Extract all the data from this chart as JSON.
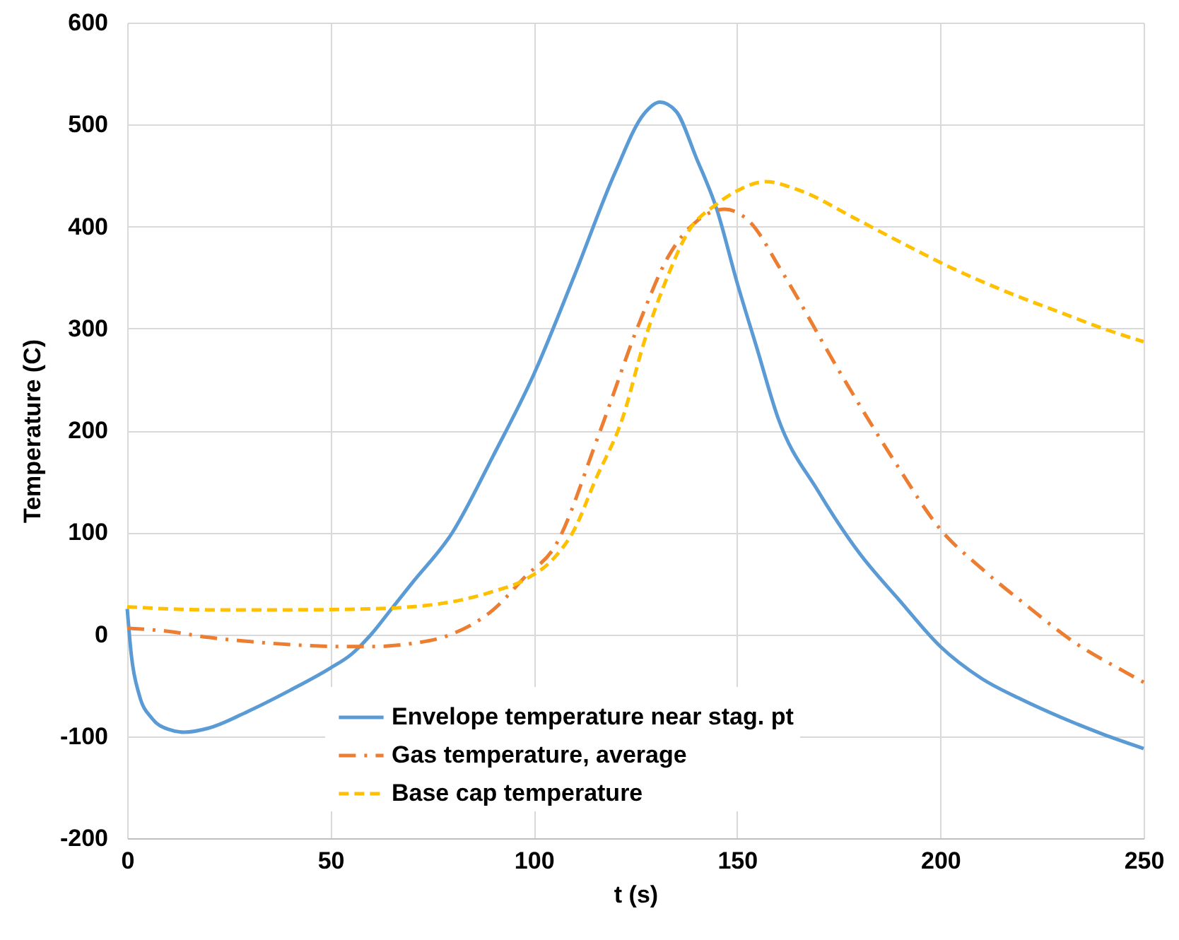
{
  "chart_data": {
    "type": "line",
    "xlabel": "t (s)",
    "ylabel": "Temperature (C)",
    "xlim": [
      0,
      250
    ],
    "xticks": [
      0,
      50,
      100,
      150,
      200,
      250
    ],
    "ylim": [
      -200,
      600
    ],
    "yticks": [
      -200,
      -100,
      0,
      100,
      200,
      300,
      400,
      500,
      600
    ],
    "grid": true,
    "legend": "bottom",
    "series": [
      {
        "name": "Envelope temperature near stag. pt",
        "color": "#5b9bd5",
        "line_style": "solid",
        "x": [
          0,
          1,
          3,
          6,
          10,
          14,
          20,
          30,
          40,
          50,
          55,
          60,
          65,
          70,
          80,
          90,
          100,
          110,
          120,
          127,
          131,
          135,
          140,
          145,
          150,
          155,
          160,
          170,
          180,
          190,
          200,
          210,
          220,
          230,
          240,
          250
        ],
        "values": [
          25,
          -20,
          -60,
          -82,
          -93,
          -96,
          -92,
          -75,
          -55,
          -33,
          -20,
          0,
          25,
          50,
          100,
          175,
          255,
          352,
          453,
          510,
          522,
          513,
          467,
          417,
          345,
          279,
          213,
          140,
          80,
          33,
          -12,
          -43,
          -64,
          -82,
          -98,
          -112
        ]
      },
      {
        "name": "Gas temperature, average",
        "color": "#ed7d31",
        "line_style": "dashdot",
        "x": [
          0,
          10,
          20,
          30,
          40,
          53,
          60,
          70,
          79,
          90,
          98,
          105,
          116,
          126,
          133,
          140,
          147,
          153,
          161,
          175,
          189,
          200,
          210,
          221,
          233,
          245,
          250
        ],
        "values": [
          6,
          3,
          -3,
          -7,
          -10,
          -12,
          -12,
          -9,
          -1,
          24,
          57,
          85,
          196,
          306,
          370,
          405,
          417,
          405,
          356,
          259,
          168,
          103,
          65,
          29,
          -8,
          -36,
          -47
        ]
      },
      {
        "name": "Base cap temperature",
        "color": "#ffc000",
        "line_style": "dashed",
        "x": [
          0,
          20,
          40,
          60,
          70,
          80,
          90,
          98,
          105,
          110,
          115,
          122,
          127,
          133,
          138,
          145,
          150,
          157,
          165,
          179,
          190,
          203,
          215,
          230,
          240,
          250
        ],
        "values": [
          27,
          24,
          24,
          25,
          27,
          32,
          42,
          54,
          75,
          103,
          150,
          214,
          285,
          352,
          395,
          422,
          435,
          444,
          436,
          408,
          385,
          359,
          338,
          315,
          300,
          287
        ]
      }
    ]
  }
}
